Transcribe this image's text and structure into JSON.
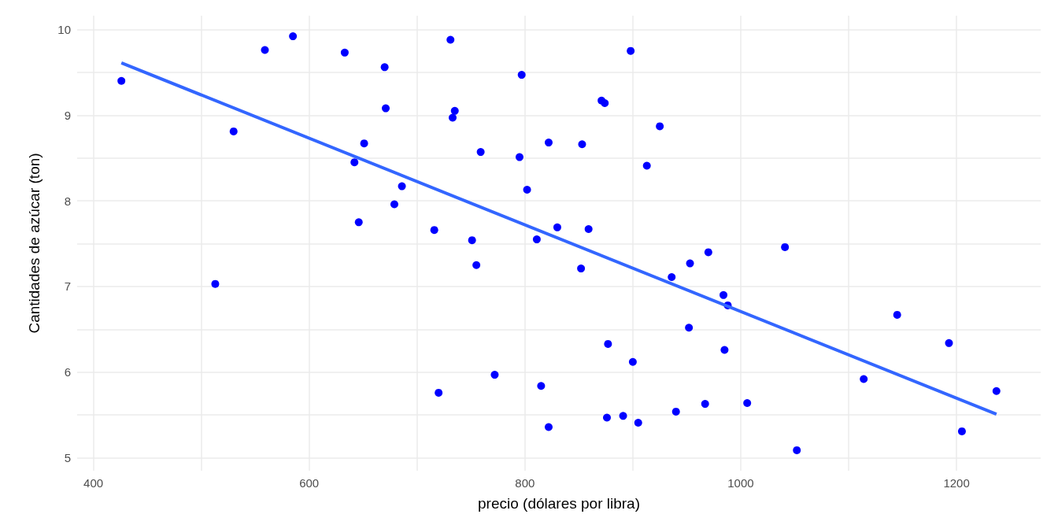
{
  "chart_data": {
    "type": "scatter",
    "xlabel": "precio (dólares por libra)",
    "ylabel": "Cantidades de azúcar (ton)",
    "xlim": [
      385,
      1278
    ],
    "ylim": [
      4.85,
      10.16
    ],
    "xticks": [
      400,
      {
        "value": 500,
        "label": null
      },
      600,
      {
        "value": 700,
        "label": null
      },
      800,
      {
        "value": 900,
        "label": null
      },
      1000,
      {
        "value": 1100,
        "label": null
      },
      1200
    ],
    "yticks": [
      5,
      {
        "value": 5.5,
        "label": null
      },
      6,
      {
        "value": 6.5,
        "label": null
      },
      7,
      {
        "value": 7.5,
        "label": null
      },
      8,
      {
        "value": 8.5,
        "label": null
      },
      9,
      {
        "value": 9.5,
        "label": null
      },
      10
    ],
    "grid": true,
    "marker": "circle",
    "series": [
      {
        "color": "#0000ff",
        "x": [
          426,
          559,
          585,
          633,
          670,
          671,
          530,
          651,
          642,
          686,
          679,
          646,
          716,
          513,
          720,
          731,
          797,
          898,
          735,
          733,
          871,
          874,
          925,
          759,
          795,
          822,
          853,
          913,
          802,
          751,
          755,
          811,
          830,
          859,
          852,
          970,
          953,
          936,
          984,
          988,
          952,
          985,
          877,
          900,
          772,
          815,
          822,
          876,
          891,
          905,
          940,
          967,
          1006,
          1041,
          1145,
          1193,
          1114,
          1237,
          1205,
          1052
        ],
        "values": [
          9.4,
          9.76,
          9.92,
          9.73,
          9.56,
          9.08,
          8.81,
          8.67,
          8.45,
          8.17,
          7.96,
          7.75,
          7.66,
          7.03,
          5.76,
          9.88,
          9.47,
          9.75,
          9.05,
          8.97,
          9.17,
          9.14,
          8.87,
          8.57,
          8.51,
          8.68,
          8.66,
          8.41,
          8.13,
          7.54,
          7.25,
          7.55,
          7.69,
          7.67,
          7.21,
          7.4,
          7.27,
          7.11,
          6.9,
          6.78,
          6.52,
          6.26,
          6.33,
          6.12,
          5.97,
          5.84,
          5.36,
          5.47,
          5.49,
          5.41,
          5.54,
          5.63,
          5.64,
          7.46,
          6.67,
          6.34,
          5.92,
          5.78,
          5.31,
          5.09
        ]
      },
      {
        "type": "line",
        "color": "#3366ff",
        "x": [
          426,
          1237
        ],
        "values": [
          9.61,
          5.51
        ],
        "marker": "none",
        "line_style": "solid"
      }
    ]
  }
}
